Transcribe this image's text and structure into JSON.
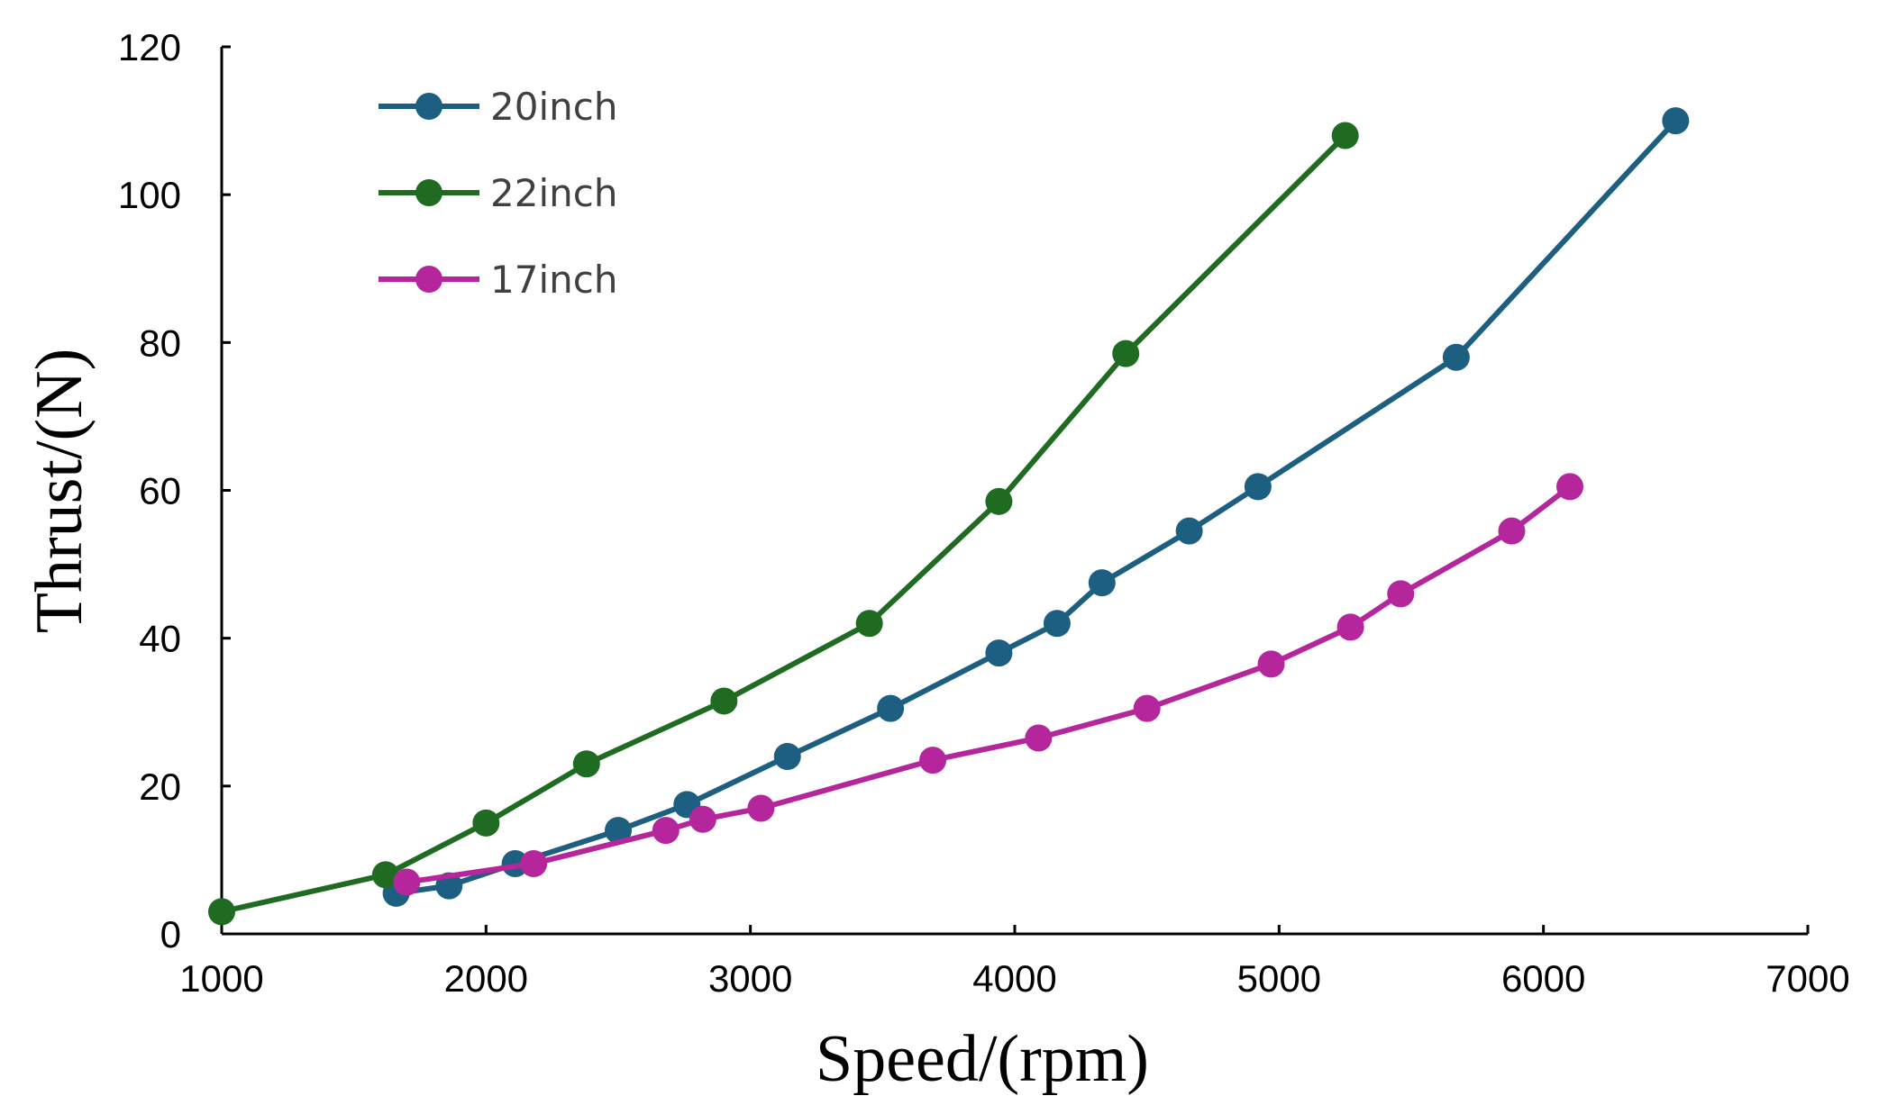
{
  "chart_data": {
    "type": "line",
    "title": "",
    "xlabel": "Speed/(rpm)",
    "ylabel": "Thrust/(N)",
    "xlim": [
      1000,
      7000
    ],
    "ylim": [
      0,
      120
    ],
    "x_ticks": [
      1000,
      2000,
      3000,
      4000,
      5000,
      6000,
      7000
    ],
    "y_ticks": [
      0,
      20,
      40,
      60,
      80,
      100,
      120
    ],
    "grid": false,
    "legend_position": "top-left",
    "series": [
      {
        "name": "20inch",
        "color": "#1d5f80",
        "points": [
          [
            1660,
            5.5
          ],
          [
            1860,
            6.5
          ],
          [
            2110,
            9.5
          ],
          [
            2500,
            14
          ],
          [
            2760,
            17.5
          ],
          [
            3140,
            24
          ],
          [
            3530,
            30.5
          ],
          [
            3940,
            38
          ],
          [
            4160,
            42
          ],
          [
            4330,
            47.5
          ],
          [
            4660,
            54.5
          ],
          [
            4920,
            60.5
          ],
          [
            5670,
            78
          ],
          [
            6500,
            110
          ]
        ]
      },
      {
        "name": "22inch",
        "color": "#1e6b21",
        "points": [
          [
            1000,
            3
          ],
          [
            1620,
            8
          ],
          [
            2000,
            15
          ],
          [
            2380,
            23
          ],
          [
            2900,
            31.5
          ],
          [
            3450,
            42
          ],
          [
            3940,
            58.5
          ],
          [
            4420,
            78.5
          ],
          [
            5250,
            108
          ]
        ]
      },
      {
        "name": "17inch",
        "color": "#b5269c",
        "points": [
          [
            1700,
            7
          ],
          [
            2180,
            9.5
          ],
          [
            2680,
            14
          ],
          [
            2820,
            15.5
          ],
          [
            3040,
            17
          ],
          [
            3690,
            23.5
          ],
          [
            4090,
            26.5
          ],
          [
            4500,
            30.5
          ],
          [
            4970,
            36.5
          ],
          [
            5270,
            41.5
          ],
          [
            5460,
            46
          ],
          [
            5880,
            54.5
          ],
          [
            6100,
            60.5
          ]
        ]
      }
    ]
  }
}
